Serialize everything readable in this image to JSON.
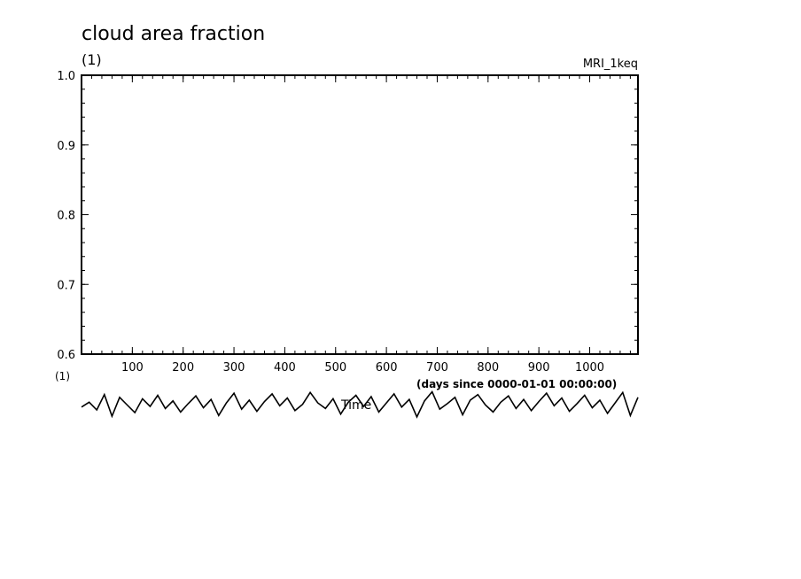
{
  "chart_data": {
    "type": "line",
    "title": "cloud area fraction",
    "y_units": "(1)",
    "x_units": "(1)",
    "model": "MRI_1keq",
    "xlabel": "Time",
    "x_units_label": "(days since 0000-01-01 00:00:00)",
    "xlim": [
      0,
      1095
    ],
    "ylim": [
      0.6,
      1.0
    ],
    "x_ticks": [
      100,
      200,
      300,
      400,
      500,
      600,
      700,
      800,
      900,
      1000
    ],
    "x_tick_labels": [
      "100",
      "200",
      "300",
      "400",
      "500",
      "600",
      "700",
      "800",
      "900",
      "1000"
    ],
    "y_ticks": [
      0.6,
      0.7,
      0.8,
      0.9,
      1.0
    ],
    "y_tick_labels": [
      "0.6",
      "0.7",
      "0.8",
      "0.9",
      "1.0"
    ],
    "grid": false,
    "series": [
      {
        "color": "#000000",
        "x": [
          0,
          15,
          30,
          45,
          60,
          75,
          90,
          105,
          120,
          135,
          150,
          165,
          180,
          195,
          210,
          225,
          240,
          255,
          270,
          285,
          300,
          315,
          330,
          345,
          360,
          375,
          390,
          405,
          420,
          435,
          450,
          465,
          480,
          495,
          510,
          525,
          540,
          555,
          570,
          585,
          600,
          615,
          630,
          645,
          660,
          675,
          690,
          705,
          720,
          735,
          750,
          765,
          780,
          795,
          810,
          825,
          840,
          855,
          870,
          885,
          900,
          915,
          930,
          945,
          960,
          975,
          990,
          1005,
          1020,
          1035,
          1050,
          1065,
          1080,
          1095
        ],
        "values": [
          0.524,
          0.531,
          0.52,
          0.542,
          0.511,
          0.538,
          0.527,
          0.516,
          0.536,
          0.525,
          0.541,
          0.522,
          0.533,
          0.517,
          0.529,
          0.54,
          0.523,
          0.535,
          0.512,
          0.53,
          0.544,
          0.521,
          0.534,
          0.518,
          0.532,
          0.543,
          0.526,
          0.537,
          0.519,
          0.528,
          0.545,
          0.53,
          0.522,
          0.536,
          0.514,
          0.531,
          0.541,
          0.525,
          0.539,
          0.517,
          0.53,
          0.543,
          0.524,
          0.535,
          0.51,
          0.533,
          0.546,
          0.521,
          0.529,
          0.538,
          0.513,
          0.534,
          0.542,
          0.527,
          0.517,
          0.531,
          0.54,
          0.522,
          0.535,
          0.519,
          0.532,
          0.544,
          0.526,
          0.537,
          0.518,
          0.529,
          0.541,
          0.523,
          0.534,
          0.515,
          0.53,
          0.545,
          0.512,
          0.538
        ]
      }
    ]
  }
}
